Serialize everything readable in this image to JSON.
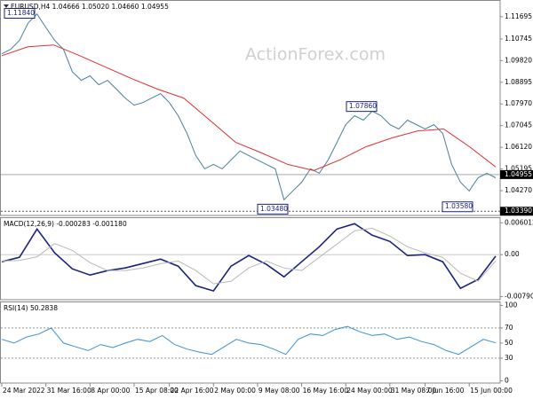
{
  "chart_data": [
    {
      "type": "line",
      "title": "EURUSD,H4  1.04666 1.05020 1.04660 1.04955",
      "watermark": "ActionForex.com",
      "ylim": [
        1.0321,
        1.1237
      ],
      "yticks": [
        1.11695,
        1.10745,
        {
          "value": 1.0982,
          "label": "1.09820"
        },
        1.08895,
        {
          "value": 1.0797,
          "label": "1.07970"
        },
        1.07045,
        {
          "value": 1.0612,
          "label": "1.06120"
        },
        1.05195,
        {
          "value": 1.0427,
          "label": "1.04270"
        }
      ],
      "current_price": {
        "value": 1.04955,
        "label": "1.04955"
      },
      "level": {
        "value": 1.0339,
        "label": "1.03390"
      },
      "annotations": [
        {
          "value": 1.1184,
          "label": "1.11840"
        },
        {
          "value": 1.0348,
          "label": "1.03480"
        },
        {
          "value": 1.0786,
          "label": "1.07860"
        },
        {
          "value": 1.0358,
          "label": "1.03580"
        }
      ],
      "xticks": [
        {
          "value": 0,
          "label": "24 Mar 2022"
        },
        {
          "value": 5,
          "label": "31 Mar 16:00"
        },
        {
          "value": 10,
          "label": "8 Apr 00:00"
        },
        {
          "value": 15,
          "label": "15 Apr 08:00"
        },
        {
          "value": 19,
          "label": "22 Apr 16:00"
        },
        {
          "value": 24,
          "label": "2 May 00:00"
        },
        {
          "value": 29,
          "label": "9 May 08:00"
        },
        {
          "value": 34,
          "label": "16 May 16:00"
        },
        {
          "value": 39,
          "label": "24 May 00:00"
        },
        {
          "value": 44,
          "label": "31 May 08:00"
        },
        {
          "value": 48,
          "label": "7 Jun 16:00"
        },
        {
          "value": 53,
          "label": "15 Jun 00:00"
        }
      ],
      "series": [
        {
          "color": "#4a7f9a",
          "values": [
            1.1011,
            1.103,
            1.1068,
            1.1143,
            1.1181,
            1.1124,
            1.1068,
            1.103,
            1.0935,
            1.0898,
            1.0917,
            1.0879,
            1.0898,
            1.086,
            1.0822,
            1.0792,
            1.0803,
            1.0822,
            1.0841,
            1.0803,
            1.0747,
            1.0671,
            1.0577,
            1.052,
            1.0539,
            1.052,
            1.0558,
            1.0596,
            1.0577,
            1.0558,
            1.0539,
            1.052,
            1.0388,
            1.0426,
            1.0463,
            1.052,
            1.0501,
            1.0558,
            1.0633,
            1.0709,
            1.0747,
            1.0728,
            1.0766,
            1.0747,
            1.0709,
            1.069,
            1.0728,
            1.0709,
            1.069,
            1.0709,
            1.0671,
            1.0539,
            1.0463,
            1.0426,
            1.0482,
            1.0501,
            1.0482
          ]
        },
        {
          "color": "#e03030",
          "values": [
            1.1003,
            1.1041,
            1.1049,
            1.1003,
            1.0954,
            1.0905,
            1.086,
            1.0822,
            1.0728,
            1.0633,
            1.0588,
            1.0539,
            1.0513,
            1.0558,
            1.0614,
            1.0652,
            1.0682,
            1.069,
            1.0614,
            1.0528
          ]
        }
      ]
    },
    {
      "type": "line",
      "title": "MACD(12,26,9) -0.000283 -0.001180",
      "ylim": [
        -0.0085,
        0.0069
      ],
      "yticks": [
        0.006012,
        {
          "value": 0,
          "label": "0.00"
        },
        -0.007907
      ],
      "series": [
        {
          "color": "#1a237e",
          "values": [
            -0.00134,
            -0.0005,
            0.00484,
            0.00033,
            -0.00267,
            -0.00384,
            -0.00301,
            -0.00251,
            -0.00167,
            -0.00084,
            -0.00217,
            -0.00585,
            -0.00685,
            -0.00217,
            -0.00017,
            -0.00184,
            -0.00418,
            -0.00134,
            0.0015,
            0.00484,
            0.00585,
            0.00367,
            0.0025,
            -0.00017,
            0.0,
            -0.00134,
            -0.00635,
            -0.00468,
            -0.00028
          ]
        },
        {
          "color": "#b8b8b8",
          "values": [
            -0.0012,
            -0.0011,
            -0.0004,
            0.0021,
            0.0008,
            -0.0015,
            -0.003,
            -0.003,
            -0.0025,
            -0.0017,
            -0.0012,
            -0.003,
            -0.0055,
            -0.005,
            -0.0025,
            -0.0012,
            -0.0025,
            -0.003,
            -0.0005,
            0.002,
            0.0045,
            0.005,
            0.0035,
            0.0015,
            0.0003,
            -0.0005,
            -0.0035,
            -0.005,
            -0.00118
          ]
        }
      ]
    },
    {
      "type": "line",
      "title": "RSI(14) 50.2838",
      "ylim": [
        -3,
        104
      ],
      "yticks": [
        100,
        70,
        50,
        30,
        0
      ],
      "dashed_levels": [
        70,
        30
      ],
      "series": [
        {
          "color": "#3a8fd6",
          "values": [
            55,
            50,
            58,
            62,
            70,
            50,
            45,
            40,
            48,
            44,
            50,
            55,
            52,
            60,
            48,
            42,
            38,
            35,
            45,
            55,
            50,
            48,
            42,
            35,
            55,
            62,
            60,
            68,
            72,
            65,
            60,
            62,
            55,
            58,
            52,
            48,
            40,
            35,
            45,
            55,
            50.28
          ]
        }
      ]
    }
  ]
}
